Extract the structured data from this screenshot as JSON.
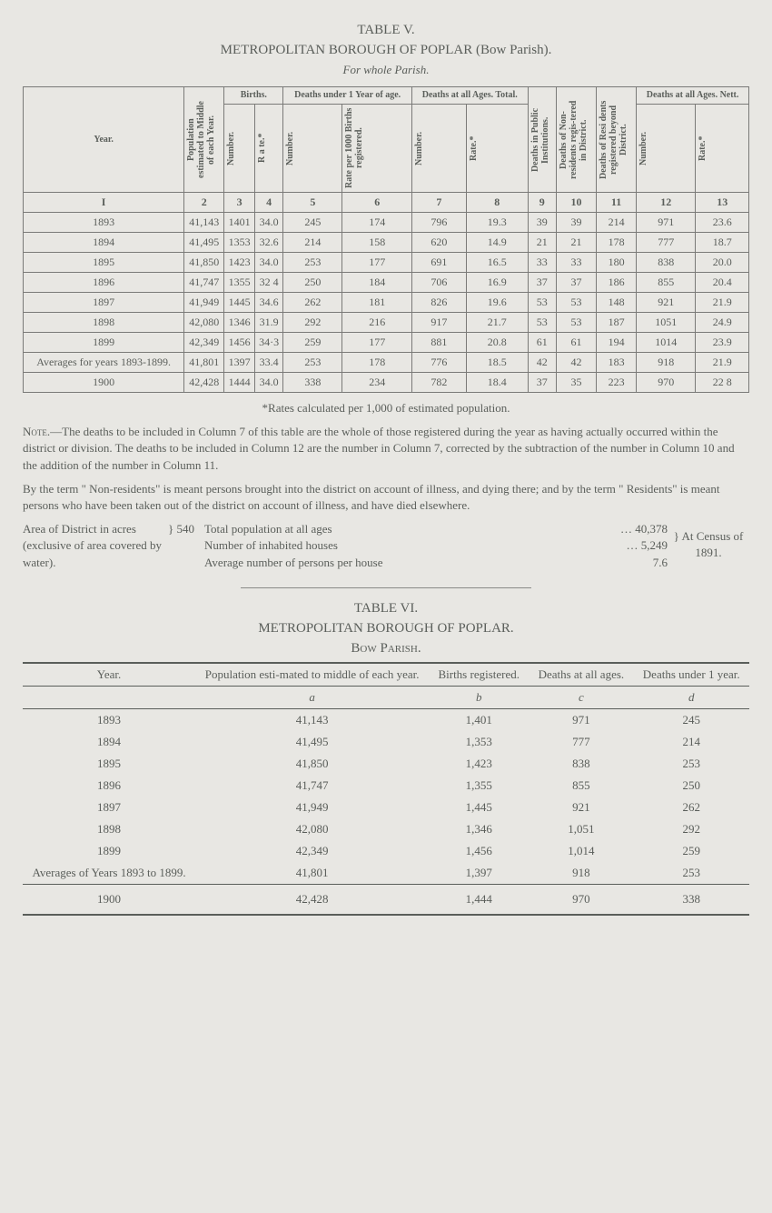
{
  "table_v": {
    "label": "TABLE V.",
    "title": "METROPOLITAN BOROUGH OF POPLAR (Bow Parish).",
    "subtitle": "For whole Parish.",
    "header_groups": {
      "col1": "Year.",
      "col2": "Population estimated to Middle of each Year.",
      "births": "Births.",
      "deaths_under1": "Deaths under 1 Year of age.",
      "deaths_all": "Deaths at all Ages. Total.",
      "col9": "Deaths in Public Institutions.",
      "col10": "Deaths of Non-residents regis-tered in District.",
      "col11": "Deaths of Resi dents registered beyond District.",
      "deaths_nett": "Deaths at all Ages. Nett."
    },
    "header_subs": {
      "number": "Number.",
      "rate": "R a te.*",
      "rate_per": "Rate per 1000 Births registered.",
      "rate2": "Rate.*"
    },
    "col_nums": [
      "I",
      "2",
      "3",
      "4",
      "5",
      "6",
      "7",
      "8",
      "9",
      "10",
      "11",
      "12",
      "13"
    ],
    "rows": [
      {
        "year": "1893",
        "pop": "41,143",
        "bnum": "1401",
        "brate": "34.0",
        "d1num": "245",
        "d1rate": "174",
        "dtnum": "796",
        "dtrate": "19.3",
        "pub": "39",
        "nonres": "39",
        "resi": "214",
        "nnum": "971",
        "nrate": "23.6"
      },
      {
        "year": "1894",
        "pop": "41,495",
        "bnum": "1353",
        "brate": "32.6",
        "d1num": "214",
        "d1rate": "158",
        "dtnum": "620",
        "dtrate": "14.9",
        "pub": "21",
        "nonres": "21",
        "resi": "178",
        "nnum": "777",
        "nrate": "18.7"
      },
      {
        "year": "1895",
        "pop": "41,850",
        "bnum": "1423",
        "brate": "34.0",
        "d1num": "253",
        "d1rate": "177",
        "dtnum": "691",
        "dtrate": "16.5",
        "pub": "33",
        "nonres": "33",
        "resi": "180",
        "nnum": "838",
        "nrate": "20.0"
      },
      {
        "year": "1896",
        "pop": "41,747",
        "bnum": "1355",
        "brate": "32 4",
        "d1num": "250",
        "d1rate": "184",
        "dtnum": "706",
        "dtrate": "16.9",
        "pub": "37",
        "nonres": "37",
        "resi": "186",
        "nnum": "855",
        "nrate": "20.4"
      },
      {
        "year": "1897",
        "pop": "41,949",
        "bnum": "1445",
        "brate": "34.6",
        "d1num": "262",
        "d1rate": "181",
        "dtnum": "826",
        "dtrate": "19.6",
        "pub": "53",
        "nonres": "53",
        "resi": "148",
        "nnum": "921",
        "nrate": "21.9"
      },
      {
        "year": "1898",
        "pop": "42,080",
        "bnum": "1346",
        "brate": "31.9",
        "d1num": "292",
        "d1rate": "216",
        "dtnum": "917",
        "dtrate": "21.7",
        "pub": "53",
        "nonres": "53",
        "resi": "187",
        "nnum": "1051",
        "nrate": "24.9"
      },
      {
        "year": "1899",
        "pop": "42,349",
        "bnum": "1456",
        "brate": "34·3",
        "d1num": "259",
        "d1rate": "177",
        "dtnum": "881",
        "dtrate": "20.8",
        "pub": "61",
        "nonres": "61",
        "resi": "194",
        "nnum": "1014",
        "nrate": "23.9"
      }
    ],
    "avg_label": "Averages for years 1893-1899.",
    "avg_row": {
      "pop": "41,801",
      "bnum": "1397",
      "brate": "33.4",
      "d1num": "253",
      "d1rate": "178",
      "dtnum": "776",
      "dtrate": "18.5",
      "pub": "42",
      "nonres": "42",
      "resi": "183",
      "nnum": "918",
      "nrate": "21.9"
    },
    "row_1900": {
      "year": "1900",
      "pop": "42,428",
      "bnum": "1444",
      "brate": "34.0",
      "d1num": "338",
      "d1rate": "234",
      "dtnum": "782",
      "dtrate": "18.4",
      "pub": "37",
      "nonres": "35",
      "resi": "223",
      "nnum": "970",
      "nrate": "22 8"
    },
    "footnote_rates": "*Rates calculated per 1,000 of estimated population.",
    "note_para1": "—The deaths to be included in Column 7 of this table are the whole of those registered during the year as having actually occurred within the district or division. The deaths to be included in Column 12 are the number in Column 7, corrected by the subtraction of the number in Column 10 and the addition of the number in Column 11.",
    "note_word": "Note.",
    "note_para2": "By the term \" Non-residents\" is meant persons brought into the district on account of illness, and dying there; and by the term \" Residents\" is meant persons who have been taken out of the district on account of illness, and have died elsewhere.",
    "area_left": "Area of District in acres (exclusive of area covered by water).",
    "area_mid": "540",
    "area_right_labels": [
      "Total population at all ages",
      "Number of inhabited houses",
      "Average number of persons per house"
    ],
    "area_right_nums": [
      "40,378",
      "5,249",
      "7.6"
    ],
    "area_bracket_note": "At Census of 1891."
  },
  "table_vi": {
    "label": "TABLE VI.",
    "title": "METROPOLITAN BOROUGH OF POPLAR.",
    "subtitle": "Bow Parish.",
    "headers": {
      "year": "Year.",
      "pop": "Population esti-mated to middle of each year.",
      "births": "Births registered.",
      "deaths_all": "Deaths at all ages.",
      "deaths_under1": "Deaths under 1 year."
    },
    "col_letters": [
      "",
      "a",
      "b",
      "c",
      "d"
    ],
    "rows": [
      {
        "year": "1893",
        "pop": "41,143",
        "births": "1,401",
        "deaths": "971",
        "under1": "245"
      },
      {
        "year": "1894",
        "pop": "41,495",
        "births": "1,353",
        "deaths": "777",
        "under1": "214"
      },
      {
        "year": "1895",
        "pop": "41,850",
        "births": "1,423",
        "deaths": "838",
        "under1": "253"
      },
      {
        "year": "1896",
        "pop": "41,747",
        "births": "1,355",
        "deaths": "855",
        "under1": "250"
      },
      {
        "year": "1897",
        "pop": "41,949",
        "births": "1,445",
        "deaths": "921",
        "under1": "262"
      },
      {
        "year": "1898",
        "pop": "42,080",
        "births": "1,346",
        "deaths": "1,051",
        "under1": "292"
      },
      {
        "year": "1899",
        "pop": "42,349",
        "births": "1,456",
        "deaths": "1,014",
        "under1": "259"
      }
    ],
    "avg_label": "Averages of Years 1893 to 1899.",
    "avg_row": {
      "pop": "41,801",
      "births": "1,397",
      "deaths": "918",
      "under1": "253"
    },
    "row_1900": {
      "year": "1900",
      "pop": "42,428",
      "births": "1,444",
      "deaths": "970",
      "under1": "338"
    }
  }
}
